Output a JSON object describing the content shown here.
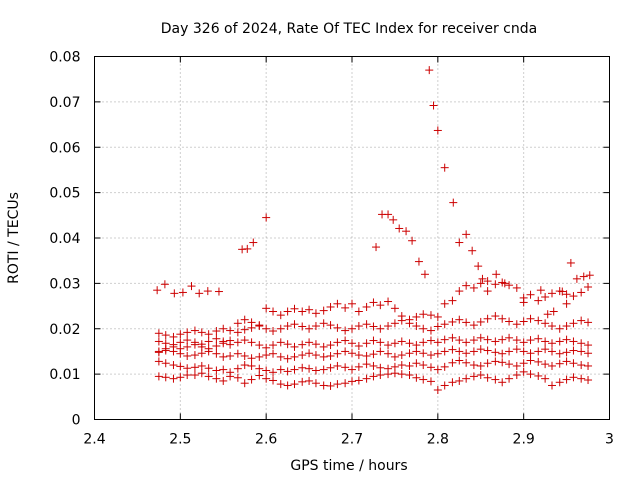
{
  "chart_data": {
    "type": "scatter",
    "title": "Day 326 of 2024, Rate Of TEC Index for receiver cnda",
    "xlabel": "GPS time / hours",
    "ylabel": "ROTI / TECUs",
    "xlim": [
      2.4,
      3.0
    ],
    "ylim": [
      0,
      0.08
    ],
    "xticks": [
      2.4,
      2.5,
      2.6,
      2.7,
      2.8,
      2.9,
      3.0
    ],
    "xtick_labels": [
      "2.4",
      "2.5",
      "2.6",
      "2.7",
      "2.8",
      "2.9",
      "3"
    ],
    "yticks": [
      0,
      0.01,
      0.02,
      0.03,
      0.04,
      0.05,
      0.06,
      0.07,
      0.08
    ],
    "ytick_labels": [
      "0",
      "0.01",
      "0.02",
      "0.03",
      "0.04",
      "0.05",
      "0.06",
      "0.07",
      "0.08"
    ],
    "grid": true,
    "marker": "+",
    "color": "#cc0000",
    "series": [
      {
        "name": "ROTI",
        "x": [
          2.475,
          2.483,
          2.492,
          2.5,
          2.508,
          2.517,
          2.525,
          2.533,
          2.542,
          2.55,
          2.558,
          2.567,
          2.575,
          2.583,
          2.592,
          2.6,
          2.608,
          2.617,
          2.625,
          2.633,
          2.642,
          2.65,
          2.658,
          2.667,
          2.675,
          2.683,
          2.692,
          2.7,
          2.708,
          2.717,
          2.725,
          2.733,
          2.742,
          2.75,
          2.758,
          2.767,
          2.775,
          2.783,
          2.792,
          2.8,
          2.808,
          2.817,
          2.825,
          2.833,
          2.842,
          2.85,
          2.858,
          2.867,
          2.875,
          2.883,
          2.892,
          2.9,
          2.908,
          2.917,
          2.925,
          2.933,
          2.942,
          2.95,
          2.958,
          2.967,
          2.975,
          2.475,
          2.483,
          2.492,
          2.5,
          2.508,
          2.517,
          2.525,
          2.533,
          2.542,
          2.55,
          2.558,
          2.567,
          2.575,
          2.583,
          2.592,
          2.6,
          2.608,
          2.617,
          2.625,
          2.633,
          2.642,
          2.65,
          2.658,
          2.667,
          2.675,
          2.683,
          2.692,
          2.7,
          2.708,
          2.717,
          2.725,
          2.733,
          2.742,
          2.75,
          2.758,
          2.767,
          2.775,
          2.783,
          2.792,
          2.8,
          2.808,
          2.817,
          2.825,
          2.833,
          2.842,
          2.85,
          2.858,
          2.867,
          2.875,
          2.883,
          2.892,
          2.9,
          2.908,
          2.917,
          2.925,
          2.933,
          2.942,
          2.95,
          2.958,
          2.967,
          2.975,
          2.475,
          2.483,
          2.492,
          2.5,
          2.508,
          2.517,
          2.525,
          2.533,
          2.542,
          2.55,
          2.558,
          2.567,
          2.575,
          2.583,
          2.592,
          2.6,
          2.608,
          2.617,
          2.625,
          2.633,
          2.642,
          2.65,
          2.658,
          2.667,
          2.675,
          2.683,
          2.692,
          2.7,
          2.708,
          2.717,
          2.725,
          2.733,
          2.742,
          2.75,
          2.758,
          2.767,
          2.775,
          2.783,
          2.792,
          2.8,
          2.808,
          2.817,
          2.825,
          2.833,
          2.842,
          2.85,
          2.858,
          2.867,
          2.875,
          2.883,
          2.892,
          2.9,
          2.908,
          2.917,
          2.925,
          2.933,
          2.942,
          2.95,
          2.958,
          2.967,
          2.975,
          2.475,
          2.483,
          2.492,
          2.5,
          2.508,
          2.517,
          2.525,
          2.533,
          2.542,
          2.55,
          2.558,
          2.567,
          2.575,
          2.583,
          2.592,
          2.6,
          2.608,
          2.617,
          2.625,
          2.633,
          2.642,
          2.65,
          2.658,
          2.667,
          2.675,
          2.683,
          2.692,
          2.7,
          2.708,
          2.717,
          2.725,
          2.733,
          2.742,
          2.75,
          2.758,
          2.767,
          2.775,
          2.783,
          2.792,
          2.8,
          2.808,
          2.817,
          2.825,
          2.833,
          2.842,
          2.85,
          2.858,
          2.867,
          2.875,
          2.883,
          2.892,
          2.9,
          2.908,
          2.917,
          2.925,
          2.933,
          2.942,
          2.95,
          2.958,
          2.967,
          2.975,
          2.475,
          2.483,
          2.492,
          2.5,
          2.508,
          2.517,
          2.525,
          2.533,
          2.542,
          2.55,
          2.558,
          2.567,
          2.575,
          2.583,
          2.592,
          2.6,
          2.608,
          2.617,
          2.625,
          2.633,
          2.642,
          2.65,
          2.658,
          2.667,
          2.675,
          2.683,
          2.692,
          2.7,
          2.708,
          2.717,
          2.725,
          2.733,
          2.742,
          2.75,
          2.758,
          2.767,
          2.775,
          2.783,
          2.792,
          2.8,
          2.808,
          2.817,
          2.825,
          2.833,
          2.842,
          2.85,
          2.858,
          2.867,
          2.875,
          2.883,
          2.892,
          2.9,
          2.908,
          2.917,
          2.925,
          2.933,
          2.942,
          2.95,
          2.958,
          2.967,
          2.975,
          2.475,
          2.483,
          2.492,
          2.5,
          2.508,
          2.517,
          2.525,
          2.533,
          2.542,
          2.55,
          2.558,
          2.567,
          2.575,
          2.583,
          2.592,
          2.6,
          2.608,
          2.617,
          2.625,
          2.633,
          2.642,
          2.65,
          2.658,
          2.667,
          2.675,
          2.683,
          2.692,
          2.7,
          2.708,
          2.717,
          2.725,
          2.733,
          2.742,
          2.75,
          2.758,
          2.767,
          2.775,
          2.783,
          2.792,
          2.8,
          2.808,
          2.817,
          2.825,
          2.833,
          2.842,
          2.85,
          2.858,
          2.867,
          2.875,
          2.883,
          2.892,
          2.9,
          2.908,
          2.917,
          2.925,
          2.933,
          2.942,
          2.95,
          2.958,
          2.967,
          2.975,
          2.473,
          2.482,
          2.493,
          2.503,
          2.513,
          2.522,
          2.532,
          2.545,
          2.572,
          2.578,
          2.585,
          2.6,
          2.728,
          2.735,
          2.742,
          2.748,
          2.755,
          2.763,
          2.77,
          2.778,
          2.785,
          2.79,
          2.795,
          2.8,
          2.808,
          2.818,
          2.825,
          2.833,
          2.84,
          2.847,
          2.852,
          2.858,
          2.868,
          2.878,
          2.9,
          2.92,
          2.928,
          2.935,
          2.945,
          2.95,
          2.955,
          2.962,
          2.97,
          2.977
        ],
        "y": [
          0.0095,
          0.0093,
          0.009,
          0.0093,
          0.0098,
          0.0098,
          0.0102,
          0.0095,
          0.009,
          0.0085,
          0.0095,
          0.0092,
          0.008,
          0.0088,
          0.0097,
          0.009,
          0.0086,
          0.0078,
          0.0075,
          0.0078,
          0.0083,
          0.0085,
          0.008,
          0.0075,
          0.0074,
          0.0078,
          0.008,
          0.0084,
          0.0086,
          0.009,
          0.0095,
          0.0098,
          0.01,
          0.0102,
          0.01,
          0.0098,
          0.0092,
          0.0088,
          0.0084,
          0.0065,
          0.0075,
          0.0082,
          0.0085,
          0.009,
          0.0095,
          0.0098,
          0.0092,
          0.0088,
          0.0082,
          0.009,
          0.0098,
          0.0105,
          0.01,
          0.0096,
          0.009,
          0.0075,
          0.0082,
          0.0088,
          0.0093,
          0.009,
          0.0087,
          0.0128,
          0.0124,
          0.012,
          0.0117,
          0.0113,
          0.0115,
          0.0118,
          0.0113,
          0.0108,
          0.011,
          0.0104,
          0.0112,
          0.012,
          0.0118,
          0.0112,
          0.0108,
          0.0104,
          0.011,
          0.0106,
          0.011,
          0.0114,
          0.0112,
          0.0108,
          0.011,
          0.0114,
          0.0118,
          0.0115,
          0.011,
          0.0116,
          0.0122,
          0.0118,
          0.0114,
          0.0112,
          0.0116,
          0.012,
          0.0118,
          0.0124,
          0.012,
          0.0115,
          0.011,
          0.0116,
          0.0125,
          0.013,
          0.0125,
          0.012,
          0.0118,
          0.0124,
          0.0128,
          0.0126,
          0.0122,
          0.0118,
          0.0124,
          0.013,
          0.0127,
          0.0122,
          0.0118,
          0.0123,
          0.0128,
          0.0124,
          0.012,
          0.0118,
          0.0148,
          0.0152,
          0.015,
          0.0145,
          0.014,
          0.0142,
          0.0146,
          0.015,
          0.0145,
          0.0138,
          0.014,
          0.0145,
          0.014,
          0.0135,
          0.0138,
          0.0142,
          0.0145,
          0.0138,
          0.0134,
          0.0138,
          0.0142,
          0.0146,
          0.0142,
          0.0138,
          0.014,
          0.0145,
          0.015,
          0.0146,
          0.0142,
          0.014,
          0.0144,
          0.015,
          0.0145,
          0.0138,
          0.0142,
          0.0146,
          0.015,
          0.0146,
          0.0142,
          0.0145,
          0.015,
          0.0154,
          0.015,
          0.0146,
          0.015,
          0.0155,
          0.0152,
          0.0148,
          0.0145,
          0.015,
          0.0155,
          0.015,
          0.0146,
          0.015,
          0.0155,
          0.015,
          0.0145,
          0.0148,
          0.0152,
          0.015,
          0.0146,
          0.0172,
          0.0168,
          0.0165,
          0.017,
          0.0175,
          0.017,
          0.0166,
          0.0172,
          0.0178,
          0.0172,
          0.0165,
          0.017,
          0.0175,
          0.017,
          0.0164,
          0.0158,
          0.0164,
          0.017,
          0.0166,
          0.016,
          0.0165,
          0.017,
          0.0166,
          0.016,
          0.0164,
          0.017,
          0.0174,
          0.0168,
          0.0162,
          0.0168,
          0.0174,
          0.017,
          0.0164,
          0.0168,
          0.0172,
          0.0168,
          0.0164,
          0.017,
          0.0174,
          0.017,
          0.0176,
          0.018,
          0.0175,
          0.017,
          0.0175,
          0.018,
          0.0176,
          0.0172,
          0.0176,
          0.018,
          0.0175,
          0.017,
          0.0175,
          0.0178,
          0.0172,
          0.0168,
          0.0172,
          0.0176,
          0.0172,
          0.0168,
          0.0164,
          0.019,
          0.0186,
          0.0182,
          0.0188,
          0.0192,
          0.0196,
          0.0192,
          0.0188,
          0.0195,
          0.02,
          0.0196,
          0.0192,
          0.0198,
          0.0202,
          0.0206,
          0.02,
          0.0195,
          0.02,
          0.0206,
          0.021,
          0.0205,
          0.02,
          0.0206,
          0.0212,
          0.0208,
          0.0202,
          0.0196,
          0.02,
          0.0206,
          0.021,
          0.0205,
          0.02,
          0.0206,
          0.0212,
          0.0218,
          0.0212,
          0.0206,
          0.02,
          0.0196,
          0.0205,
          0.021,
          0.0215,
          0.022,
          0.0214,
          0.0208,
          0.0215,
          0.0222,
          0.0228,
          0.0222,
          0.0216,
          0.021,
          0.0216,
          0.0222,
          0.0218,
          0.0212,
          0.0206,
          0.02,
          0.0206,
          0.0212,
          0.0218,
          0.0214,
          0.015,
          0.0156,
          0.016,
          0.0156,
          0.016,
          0.0165,
          0.016,
          0.0156,
          0.0162,
          0.0168,
          0.0174,
          0.0212,
          0.022,
          0.0214,
          0.0208,
          0.0245,
          0.0238,
          0.023,
          0.0238,
          0.0244,
          0.0238,
          0.0242,
          0.0234,
          0.024,
          0.0248,
          0.0255,
          0.0246,
          0.0255,
          0.0238,
          0.0248,
          0.0258,
          0.0252,
          0.026,
          0.0245,
          0.0228,
          0.022,
          0.0226,
          0.0232,
          0.023,
          0.0226,
          0.0255,
          0.0262,
          0.0283,
          0.0295,
          0.029,
          0.03,
          0.0305,
          0.0298,
          0.0302,
          0.0296,
          0.029,
          0.0268,
          0.0275,
          0.0262,
          0.027,
          0.0278,
          0.0283,
          0.0276,
          0.0272,
          0.028,
          0.0292,
          0.0285,
          0.0298,
          0.0278,
          0.028,
          0.0294,
          0.0278,
          0.0283,
          0.0282,
          0.0375,
          0.0376,
          0.039,
          0.0445,
          0.038,
          0.0452,
          0.0452,
          0.044,
          0.0421,
          0.0415,
          0.0394,
          0.0348,
          0.032,
          0.077,
          0.0692,
          0.0637,
          0.0555,
          0.0478,
          0.039,
          0.0408,
          0.0372,
          0.0338,
          0.031,
          0.0283,
          0.032,
          0.03,
          0.0258,
          0.0285,
          0.0232,
          0.0238,
          0.0282,
          0.0255,
          0.0345,
          0.031,
          0.0315,
          0.0318
        ]
      }
    ]
  }
}
